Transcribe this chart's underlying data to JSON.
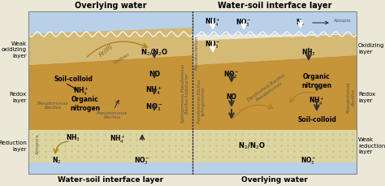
{
  "fig_width": 4.74,
  "fig_height": 2.29,
  "dpi": 100,
  "bg_color": "#f0ede0",
  "water_color_top": "#c5daea",
  "water_color_blue": "#aac8e0",
  "weak_ox_color": "#d4b96a",
  "redox_color": "#c49830",
  "reduction_color": "#e0d5a0",
  "border_color": "#999999",
  "left_top_label": "Overlying water",
  "left_bottom_label": "Water-soil interface layer",
  "right_top_label": "Water-soil interface layer",
  "right_bottom_label": "Overlying water",
  "left_labels": [
    "Weak\noxidizing\nlayer",
    "Redox\nlayer",
    "Reduction\nlayer"
  ],
  "right_labels": [
    "Oxidizing\nlayer",
    "Redox\nlayer",
    "Weak\nreduction\nlayer"
  ]
}
